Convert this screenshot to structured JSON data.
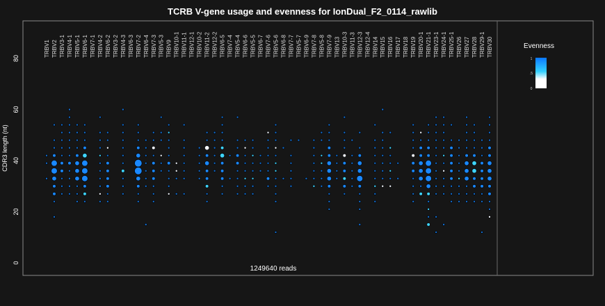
{
  "chart_data": {
    "type": "scatter",
    "title": "TCRB V-gene usage and evenness for IonDual_F2_0114_rawlib",
    "ylabel": "CDR3 length (nt)",
    "xlabel": "",
    "ylim": [
      0,
      90
    ],
    "yticks": [
      0,
      20,
      40,
      60,
      80
    ],
    "footer": "1249640 reads",
    "cdr3_lengths": [
      60,
      57,
      54,
      51,
      48,
      45,
      42,
      39,
      36,
      33,
      30,
      27,
      24,
      21,
      18,
      15,
      12
    ],
    "size_note": "size digit per CDR3 length (0 = none, 5 = largest share)",
    "legend": {
      "title": "Evenness",
      "ticks": [
        "1",
        ".5",
        "0"
      ],
      "colors": [
        "#0a78ff",
        "#33d0ff",
        "#ffffff"
      ]
    },
    "genes": [
      {
        "name": "TRBV1",
        "size": "00000011010000000"
      },
      {
        "name": "TRBV2",
        "size": "00101124432210100"
      },
      {
        "name": "TRBV3-1",
        "size": "00111112211100000"
      },
      {
        "name": "TRBV4-1",
        "size": "11111112111100000"
      },
      {
        "name": "TRBV5-1",
        "size": "00111123331110000"
      },
      {
        "name": "TRBV6-1",
        "size": "00111234442210000",
        "cyan": [
          42,
          27
        ]
      },
      {
        "name": "TRBV7-1",
        "size": "00000000000000000"
      },
      {
        "name": "TRBV4-2",
        "size": "01011111111110000",
        "cyan": [
          42
        ],
        "white": [
          27
        ]
      },
      {
        "name": "TRBV6-2",
        "size": "00011112222110000",
        "white": [
          45
        ]
      },
      {
        "name": "TRBV3-2",
        "size": "00000000000000000"
      },
      {
        "name": "TRBV4-3",
        "size": "10111111211100000",
        "cyan": [
          36
        ]
      },
      {
        "name": "TRBV6-3",
        "size": "00000000000000000"
      },
      {
        "name": "TRBV7-2",
        "size": "00111235532110000"
      },
      {
        "name": "TRBV6-4",
        "size": "00001111111000010"
      },
      {
        "name": "TRBV7-3",
        "size": "00011212221110000",
        "white": [
          45
        ]
      },
      {
        "name": "TRBV5-3",
        "size": "01011011100000000",
        "white": [
          42
        ]
      },
      {
        "name": "TRBV9",
        "size": "00111112111100000",
        "cyan": [
          51
        ],
        "white": [
          27
        ]
      },
      {
        "name": "TRBV10-1",
        "size": "00000001110100000",
        "white": [
          39,
          36
        ]
      },
      {
        "name": "TRBV11-1",
        "size": "00101111110100000"
      },
      {
        "name": "TRBV12-1",
        "size": "00000000000000000"
      },
      {
        "name": "TRBV10-2",
        "size": "00000111110000000"
      },
      {
        "name": "TRBV11-2",
        "size": "00011323222110000",
        "cyan": [
          30
        ],
        "white": [
          45
        ]
      },
      {
        "name": "TRBV12-2",
        "size": "00011111100000000"
      },
      {
        "name": "TRBV6-5",
        "size": "01111232221100000",
        "cyan": [
          45,
          42
        ]
      },
      {
        "name": "TRBV7-4",
        "size": "00000010010000000"
      },
      {
        "name": "TRBV5-4",
        "size": "01001122111100000"
      },
      {
        "name": "TRBV6-6",
        "size": "00001111111100000",
        "cyan": [
          33
        ],
        "white": [
          45
        ]
      },
      {
        "name": "TRBV5-5",
        "size": "00001111111100000",
        "cyan": [
          42,
          33
        ]
      },
      {
        "name": "TRBV6-7",
        "size": "00000011100000000"
      },
      {
        "name": "TRBV7-6",
        "size": "00011111121000000",
        "white": [
          51
        ]
      },
      {
        "name": "TRBV5-6",
        "size": "00111111111110001",
        "cyan": [
          39,
          36
        ],
        "white": [
          45
        ]
      },
      {
        "name": "TRBV6-8",
        "size": "00000100010000000"
      },
      {
        "name": "TRBV7-7",
        "size": "00001011111000000"
      },
      {
        "name": "TRBV5-7",
        "size": "00001000000000000"
      },
      {
        "name": "TRBV6-9",
        "size": "00000000010000000"
      },
      {
        "name": "TRBV7-8",
        "size": "00001111111000000",
        "cyan": [
          30
        ]
      },
      {
        "name": "TRBV5-8",
        "size": "00011011111000000",
        "cyan": [
          42,
          39
        ]
      },
      {
        "name": "TRBV7-9",
        "size": "00111223332111000"
      },
      {
        "name": "TRBV13",
        "size": "00000011110000000"
      },
      {
        "name": "TRBV10-3",
        "size": "01011122222100000",
        "cyan": [
          33
        ],
        "white": [
          42
        ]
      },
      {
        "name": "TRBV11-3",
        "size": "00001011111000000"
      },
      {
        "name": "TRBV12-3",
        "size": "00010123342111010"
      },
      {
        "name": "TRBV12-4",
        "size": "00000000000000000"
      },
      {
        "name": "TRBV14",
        "size": "00101111111110000",
        "cyan": [
          30
        ]
      },
      {
        "name": "TRBV15",
        "size": "10011111111000000",
        "white": [
          30
        ]
      },
      {
        "name": "TRBV16",
        "size": "00010111111000000",
        "cyan": [
          45,
          36
        ],
        "white": [
          30
        ]
      },
      {
        "name": "TRBV17",
        "size": "00000001010000000"
      },
      {
        "name": "TRBV18",
        "size": "00000000000000000"
      },
      {
        "name": "TRBV19",
        "size": "00111122211110000",
        "white": [
          42
        ]
      },
      {
        "name": "TRBV20-1",
        "size": "00011223331200000",
        "cyan": [
          27
        ],
        "white": [
          51
        ]
      },
      {
        "name": "TRBV21-1",
        "size": "00111224443211120",
        "cyan": [
          27,
          21,
          15
        ]
      },
      {
        "name": "TRBV23-1",
        "size": "01111111111100101"
      },
      {
        "name": "TRBV24-1",
        "size": "01111111111100010",
        "cyan": [
          42
        ],
        "white": [
          36
        ]
      },
      {
        "name": "TRBV25-1",
        "size": "00101222221110000"
      },
      {
        "name": "TRBV26",
        "size": "00001111111110000",
        "cyan": [
          33
        ]
      },
      {
        "name": "TRBV27",
        "size": "01111123331110000"
      },
      {
        "name": "TRBV28",
        "size": "00111123322110000",
        "cyan": [
          39,
          36
        ]
      },
      {
        "name": "TRBV29-1",
        "size": "00001112222110001"
      },
      {
        "name": "TRBV30",
        "size": "01111223332211100",
        "white": [
          18
        ]
      }
    ]
  }
}
